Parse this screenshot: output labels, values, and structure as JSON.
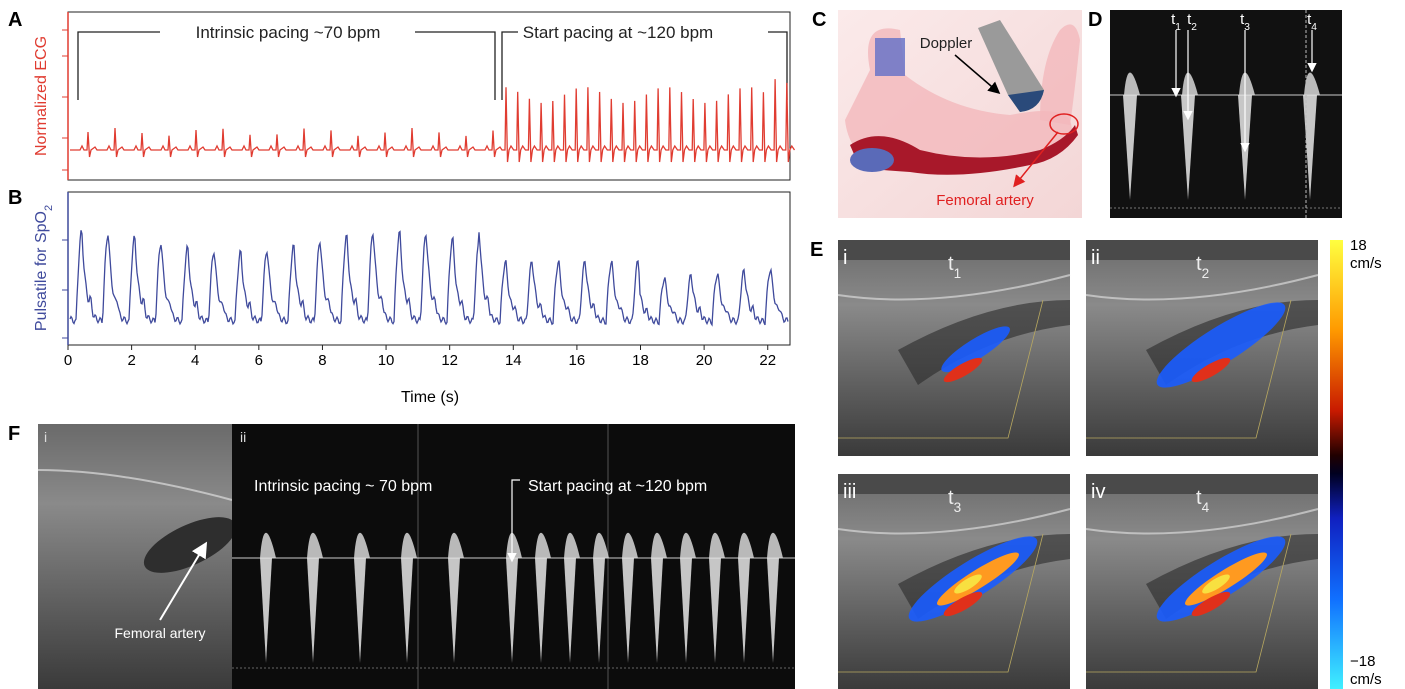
{
  "figure": {
    "A": {
      "label": "A",
      "y_label": "Normalized ECG",
      "annotation_left": "Intrinsic pacing ~70 bpm",
      "annotation_right": "Start pacing at ~120 bpm"
    },
    "B": {
      "label": "B",
      "y_label": "Pulsatile for SpO",
      "y_label_sub": "2",
      "x_label": "Time (s)",
      "xlim": [
        0,
        22.7
      ],
      "xticks": [
        0,
        2,
        4,
        6,
        8,
        10,
        12,
        14,
        16,
        18,
        20,
        22
      ]
    },
    "C": {
      "label": "C",
      "probe_label": "Doppler",
      "vessel_label": "Femoral artery"
    },
    "D": {
      "label": "D",
      "markers": [
        {
          "t": "t",
          "sub": "1"
        },
        {
          "t": "t",
          "sub": "2"
        },
        {
          "t": "t",
          "sub": "3"
        },
        {
          "t": "t",
          "sub": "4"
        }
      ]
    },
    "E": {
      "label": "E",
      "frames": [
        {
          "roman": "i",
          "t": "t",
          "sub": "1"
        },
        {
          "roman": "ii",
          "t": "t",
          "sub": "2"
        },
        {
          "roman": "iii",
          "t": "t",
          "sub": "3"
        },
        {
          "roman": "iv",
          "t": "t",
          "sub": "4"
        }
      ],
      "colorbar": {
        "max": 18,
        "min": {
          "value": -18,
          "label": "−18"
        },
        "unit": "cm/s"
      }
    },
    "F": {
      "label": "F",
      "frame_i": "i",
      "frame_ii": "ii",
      "vessel_label": "Femoral artery",
      "annotation_left": "Intrinsic pacing ~ 70 bpm",
      "annotation_right": "Start pacing at ~120 bpm"
    }
  }
}
